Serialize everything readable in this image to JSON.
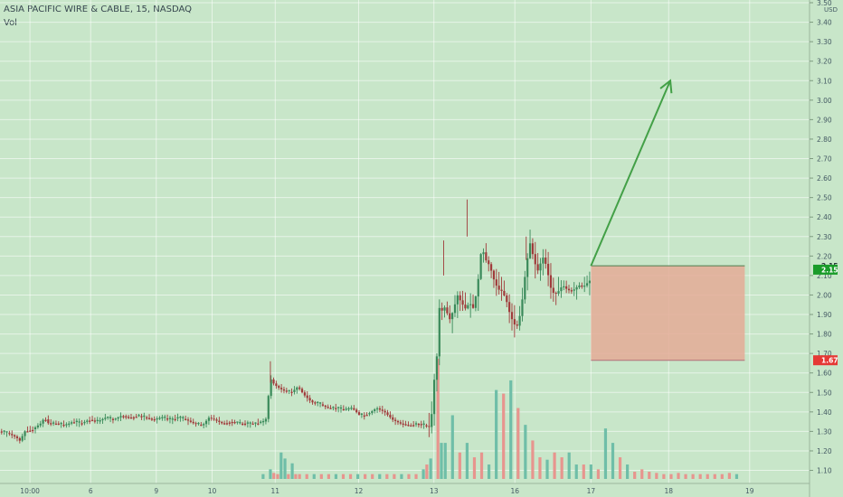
{
  "legend": {
    "symbol_line": "ASIA PACIFIC WIRE & CABLE, 15, NASDAQ",
    "volume_label": "Vol"
  },
  "colors": {
    "background": "#c8e6c9",
    "grid": "#ffffff",
    "up_candle": "#3a8a5a",
    "down_candle": "#a03a3a",
    "up_volume": "#6fbea8",
    "down_volume": "#e7958e",
    "arrow": "#43a047",
    "stop_box": "#e4aa96",
    "stop_box_edge": "#b0707a",
    "current_price_badge": "#1a9c2a",
    "stop_price_badge": "#e53935",
    "axis_text": "#455a64"
  },
  "chart_data": {
    "type": "candlestick",
    "symbol": "ASIA PACIFIC WIRE & CABLE",
    "interval": "15",
    "exchange": "NASDAQ",
    "y_axis": {
      "unit_label": "USD",
      "range": [
        1.07,
        3.5
      ],
      "ticks": [
        "3.50",
        "3.40",
        "3.30",
        "3.20",
        "3.10",
        "3.00",
        "2.90",
        "2.80",
        "2.70",
        "2.60",
        "2.50",
        "2.40",
        "2.30",
        "2.20",
        "2.10",
        "2.00",
        "1.90",
        "1.80",
        "1.70",
        "1.60",
        "1.50",
        "1.40",
        "1.30",
        "1.20",
        "1.10"
      ],
      "price_markers": [
        {
          "label": "2.15",
          "value": 2.15,
          "style": "plain"
        },
        {
          "label": "2.15",
          "value": 2.13,
          "style": "current"
        },
        {
          "label": "1.67",
          "value": 1.665,
          "style": "stop"
        }
      ]
    },
    "x_axis": {
      "range": [
        0,
        100
      ],
      "ticks": [
        {
          "x": 3.7,
          "label": "10:00"
        },
        {
          "x": 11.2,
          "label": "6"
        },
        {
          "x": 19.3,
          "label": "9"
        },
        {
          "x": 26.2,
          "label": "10"
        },
        {
          "x": 34.0,
          "label": "11"
        },
        {
          "x": 44.3,
          "label": "12"
        },
        {
          "x": 53.6,
          "label": "13"
        },
        {
          "x": 63.6,
          "label": "16"
        },
        {
          "x": 73.0,
          "label": "17"
        },
        {
          "x": 82.6,
          "label": "18"
        },
        {
          "x": 92.6,
          "label": "19"
        }
      ]
    },
    "price_points": [
      [
        0.0,
        1.3
      ],
      [
        1.0,
        1.29
      ],
      [
        2.0,
        1.27
      ],
      [
        2.5,
        1.25
      ],
      [
        3.0,
        1.3
      ],
      [
        4.0,
        1.31
      ],
      [
        5.0,
        1.34
      ],
      [
        5.5,
        1.37
      ],
      [
        6.0,
        1.34
      ],
      [
        7.0,
        1.34
      ],
      [
        8.0,
        1.33
      ],
      [
        9.0,
        1.35
      ],
      [
        10.0,
        1.34
      ],
      [
        11.0,
        1.36
      ],
      [
        12.0,
        1.35
      ],
      [
        13.0,
        1.37
      ],
      [
        14.0,
        1.36
      ],
      [
        15.0,
        1.38
      ],
      [
        16.0,
        1.37
      ],
      [
        17.0,
        1.38
      ],
      [
        18.0,
        1.37
      ],
      [
        19.0,
        1.36
      ],
      [
        20.0,
        1.37
      ],
      [
        21.0,
        1.36
      ],
      [
        22.0,
        1.37
      ],
      [
        23.0,
        1.36
      ],
      [
        24.0,
        1.34
      ],
      [
        25.0,
        1.33
      ],
      [
        25.8,
        1.37
      ],
      [
        26.5,
        1.36
      ],
      [
        27.5,
        1.34
      ],
      [
        28.5,
        1.35
      ],
      [
        29.5,
        1.34
      ],
      [
        30.5,
        1.34
      ],
      [
        31.5,
        1.34
      ],
      [
        32.5,
        1.35
      ],
      [
        33.0,
        1.37
      ],
      [
        33.3,
        1.58
      ],
      [
        33.7,
        1.55
      ],
      [
        34.2,
        1.53
      ],
      [
        35.0,
        1.51
      ],
      [
        36.0,
        1.5
      ],
      [
        36.8,
        1.53
      ],
      [
        37.5,
        1.49
      ],
      [
        38.5,
        1.45
      ],
      [
        39.5,
        1.44
      ],
      [
        40.5,
        1.42
      ],
      [
        41.5,
        1.42
      ],
      [
        42.5,
        1.41
      ],
      [
        43.5,
        1.42
      ],
      [
        44.5,
        1.38
      ],
      [
        45.5,
        1.39
      ],
      [
        46.5,
        1.42
      ],
      [
        47.5,
        1.4
      ],
      [
        48.5,
        1.36
      ],
      [
        49.5,
        1.34
      ],
      [
        50.5,
        1.33
      ],
      [
        51.5,
        1.34
      ],
      [
        52.5,
        1.33
      ],
      [
        53.2,
        1.32
      ],
      [
        53.6,
        1.55
      ],
      [
        54.0,
        1.7
      ],
      [
        54.3,
        1.95
      ],
      [
        54.6,
        1.92
      ],
      [
        55.0,
        1.94
      ],
      [
        55.5,
        1.87
      ],
      [
        56.0,
        1.92
      ],
      [
        56.5,
        2.0
      ],
      [
        57.0,
        1.96
      ],
      [
        57.5,
        1.93
      ],
      [
        58.0,
        1.96
      ],
      [
        58.5,
        1.93
      ],
      [
        59.0,
        2.05
      ],
      [
        59.5,
        2.25
      ],
      [
        60.0,
        2.18
      ],
      [
        60.5,
        2.15
      ],
      [
        61.0,
        2.08
      ],
      [
        61.5,
        2.03
      ],
      [
        62.0,
        2.02
      ],
      [
        62.5,
        1.98
      ],
      [
        63.0,
        1.9
      ],
      [
        63.5,
        1.85
      ],
      [
        64.0,
        1.84
      ],
      [
        64.5,
        1.97
      ],
      [
        65.0,
        2.15
      ],
      [
        65.5,
        2.27
      ],
      [
        66.0,
        2.17
      ],
      [
        66.5,
        2.12
      ],
      [
        67.0,
        2.2
      ],
      [
        67.5,
        2.15
      ],
      [
        68.0,
        2.04
      ],
      [
        68.5,
        2.0
      ],
      [
        69.0,
        2.02
      ],
      [
        69.5,
        2.05
      ],
      [
        70.0,
        2.03
      ],
      [
        70.5,
        2.02
      ],
      [
        71.0,
        2.03
      ],
      [
        71.5,
        2.05
      ],
      [
        72.0,
        2.04
      ],
      [
        72.5,
        2.06
      ],
      [
        73.0,
        2.08
      ]
    ],
    "volume": {
      "start_x": 32.5,
      "step": 0.9,
      "bars": [
        [
          0.04,
          0.04,
          1
        ],
        [
          0.05,
          0.08,
          1
        ],
        [
          0.04,
          0.22,
          0
        ],
        [
          0.04,
          0.17,
          1
        ],
        [
          0.04,
          0.13,
          1
        ],
        [
          0.04,
          0.04,
          0
        ],
        [
          0.04,
          0.04,
          0
        ],
        [
          0.04,
          0.04,
          1
        ],
        [
          0.04,
          0.04,
          0
        ],
        [
          0.04,
          0.04,
          0
        ],
        [
          0.04,
          0.04,
          1
        ],
        [
          0.04,
          0.04,
          0
        ],
        [
          0.04,
          0.04,
          0
        ],
        [
          0.04,
          0.04,
          1
        ],
        [
          0.04,
          0.04,
          0
        ],
        [
          0.04,
          0.04,
          0
        ],
        [
          0.04,
          0.04,
          1
        ],
        [
          0.04,
          0.04,
          0
        ],
        [
          0.04,
          0.04,
          0
        ],
        [
          0.04,
          0.04,
          1
        ],
        [
          0.04,
          0.04,
          0
        ],
        [
          0.04,
          0.04,
          0
        ],
        [
          0.12,
          0.08,
          1
        ],
        [
          0.17,
          0.17,
          1
        ],
        [
          1.0,
          0.3,
          0
        ],
        [
          0.3,
          0.3,
          1
        ],
        [
          0.53,
          0.53,
          1
        ],
        [
          0.22,
          0.22,
          0
        ],
        [
          0.3,
          0.3,
          1
        ],
        [
          0.18,
          0.18,
          0
        ],
        [
          0.22,
          0.22,
          0
        ],
        [
          0.12,
          0.12,
          1
        ],
        [
          0.74,
          0.74,
          1
        ],
        [
          0.71,
          0.71,
          0
        ],
        [
          0.82,
          0.82,
          1
        ],
        [
          0.59,
          0.59,
          0
        ],
        [
          0.45,
          0.45,
          1
        ],
        [
          0.32,
          0.32,
          0
        ],
        [
          0.18,
          0.18,
          0
        ],
        [
          0.16,
          0.16,
          1
        ],
        [
          0.22,
          0.22,
          0
        ],
        [
          0.18,
          0.18,
          0
        ],
        [
          0.22,
          0.22,
          1
        ],
        [
          0.12,
          0.12,
          1
        ],
        [
          0.12,
          0.12,
          0
        ],
        [
          0.12,
          0.12,
          1
        ],
        [
          0.08,
          0.08,
          0
        ],
        [
          0.42,
          0.42,
          1
        ],
        [
          0.3,
          0.3,
          1
        ],
        [
          0.18,
          0.18,
          0
        ],
        [
          0.12,
          0.12,
          1
        ],
        [
          0.06,
          0.06,
          0
        ],
        [
          0.08,
          0.08,
          0
        ],
        [
          0.06,
          0.06,
          0
        ],
        [
          0.05,
          0.05,
          0
        ],
        [
          0.04,
          0.04,
          0
        ],
        [
          0.04,
          0.04,
          0
        ],
        [
          0.05,
          0.05,
          0
        ],
        [
          0.04,
          0.04,
          0
        ],
        [
          0.04,
          0.04,
          0
        ],
        [
          0.04,
          0.04,
          0
        ],
        [
          0.04,
          0.04,
          0
        ],
        [
          0.04,
          0.04,
          0
        ],
        [
          0.04,
          0.04,
          0
        ],
        [
          0.05,
          0.05,
          0
        ],
        [
          0.04,
          0.04,
          1
        ]
      ]
    },
    "drawings": {
      "arrow": {
        "from": {
          "x": 73.0,
          "y": 2.15
        },
        "to": {
          "x": 82.8,
          "y": 3.1
        }
      },
      "stop_zone": {
        "x_start": 73.0,
        "x_end": 92.0,
        "y_top": 2.15,
        "y_bottom": 1.665
      }
    }
  }
}
